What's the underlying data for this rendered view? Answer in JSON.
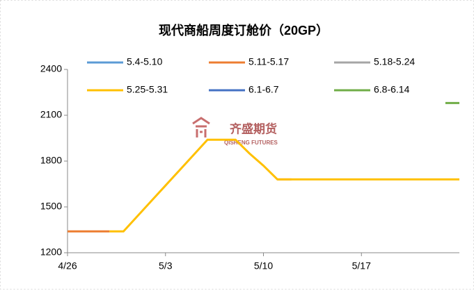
{
  "chart_data": {
    "type": "line",
    "title": "现代商船周度订舱价（20GP）",
    "watermark": "齐盛期货",
    "watermark_sub": "QISHENG FUTURES",
    "categories": [
      "4/26",
      null,
      null,
      null,
      null,
      null,
      null,
      "5/3",
      null,
      null,
      null,
      null,
      null,
      null,
      "5/10",
      null,
      null,
      null,
      null,
      null,
      null,
      "5/17",
      null,
      null,
      null,
      null,
      null,
      null,
      null
    ],
    "series": [
      {
        "name": "5.4-5.10",
        "color": "#5b9bd5",
        "values": [
          null,
          null,
          null,
          null,
          null,
          null,
          null,
          null,
          null,
          null,
          null,
          null,
          null,
          null,
          null,
          null,
          null,
          null,
          null,
          null,
          null,
          null,
          null,
          null,
          null,
          null,
          null,
          null,
          null
        ]
      },
      {
        "name": "5.11-5.17",
        "color": "#ed7d31",
        "values": [
          1340,
          1340,
          1340,
          1340,
          null,
          null,
          null,
          null,
          null,
          null,
          null,
          null,
          null,
          null,
          null,
          1680,
          1680,
          null,
          null,
          null,
          null,
          null,
          null,
          null,
          null,
          null,
          null,
          null,
          null
        ]
      },
      {
        "name": "5.18-5.24",
        "color": "#a5a5a5",
        "values": [
          null,
          null,
          null,
          null,
          null,
          null,
          null,
          null,
          null,
          null,
          null,
          null,
          null,
          null,
          null,
          null,
          null,
          null,
          null,
          null,
          null,
          null,
          null,
          null,
          null,
          null,
          null,
          null,
          null
        ]
      },
      {
        "name": "5.25-5.31",
        "color": "#ffc000",
        "values": [
          null,
          null,
          null,
          1340,
          1340,
          1440,
          1540,
          1640,
          1740,
          1840,
          1940,
          1940,
          1940,
          1850,
          1770,
          1680,
          1680,
          1680,
          1680,
          1680,
          1680,
          1680,
          1680,
          1680,
          1680,
          1680,
          1680,
          1680,
          1680
        ]
      },
      {
        "name": "6.1-6.7",
        "color": "#4472c4",
        "values": [
          null,
          null,
          null,
          null,
          null,
          null,
          null,
          null,
          null,
          null,
          null,
          null,
          null,
          null,
          null,
          null,
          null,
          null,
          null,
          null,
          null,
          null,
          null,
          null,
          null,
          null,
          null,
          null,
          null
        ]
      },
      {
        "name": "6.8-6.14",
        "color": "#70ad47",
        "values": [
          null,
          null,
          null,
          null,
          null,
          null,
          null,
          null,
          null,
          null,
          null,
          null,
          null,
          null,
          null,
          null,
          null,
          null,
          null,
          null,
          null,
          null,
          null,
          null,
          null,
          null,
          null,
          2180,
          2180
        ]
      }
    ],
    "ylim": [
      1200,
      2400
    ],
    "yticks": [
      1200,
      1500,
      1800,
      2100,
      2400
    ]
  }
}
